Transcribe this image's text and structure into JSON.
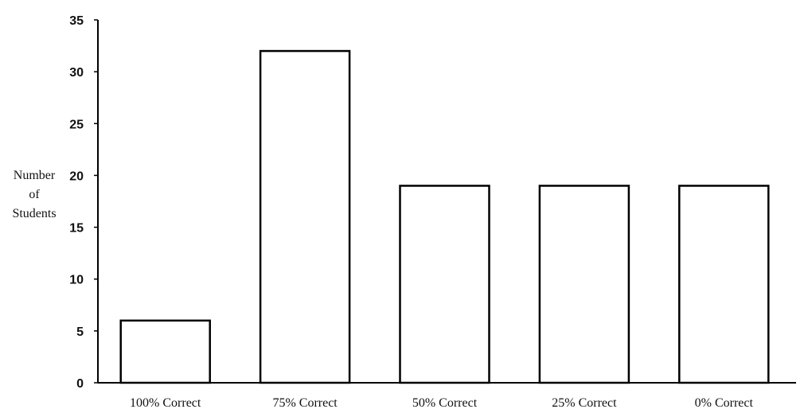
{
  "chart_data": {
    "type": "bar",
    "title": "",
    "xlabel": "",
    "ylabel_lines": [
      "Number",
      "of",
      "Students"
    ],
    "categories": [
      "100% Correct",
      "75% Correct",
      "50% Correct",
      "25% Correct",
      "0% Correct"
    ],
    "values": [
      6,
      32,
      19,
      19,
      19
    ],
    "ylim": [
      0,
      35
    ],
    "yticks": [
      0,
      5,
      10,
      15,
      20,
      25,
      30,
      35
    ],
    "grid": false,
    "legend": "none",
    "colors": {
      "bar_fill": "#ffffff",
      "bar_stroke": "#000000",
      "axis": "#000000"
    }
  }
}
